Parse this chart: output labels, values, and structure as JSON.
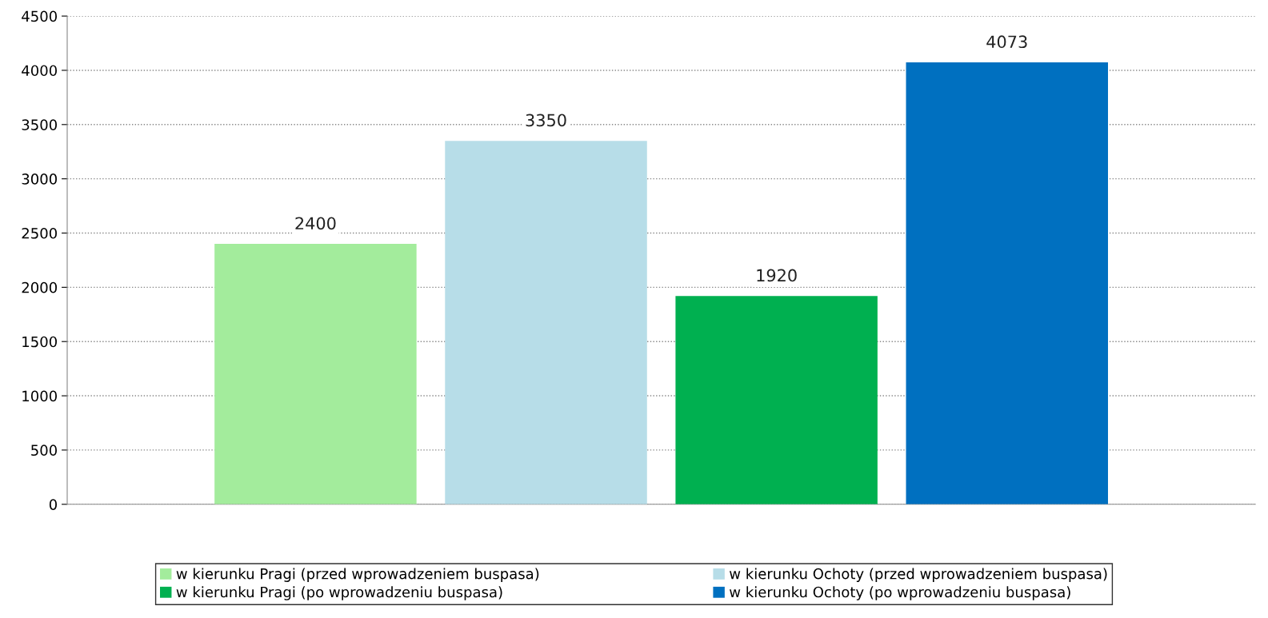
{
  "chart_data": {
    "type": "bar",
    "categories": [
      null
    ],
    "series": [
      {
        "name": "w kierunku Pragi (przed wprowadzeniem buspasa)",
        "color": "#a3ec9c",
        "values": [
          2400
        ]
      },
      {
        "name": "w kierunku Ochoty (przed wprowadzeniem buspasa)",
        "color": "#b7dde8",
        "values": [
          3350
        ]
      },
      {
        "name": "w kierunku Pragi (po wprowadzeniu buspasa)",
        "color": "#00b050",
        "values": [
          1920
        ]
      },
      {
        "name": "w kierunku Ochoty (po wprowadzeniu buspasa)",
        "color": "#0070c0",
        "values": [
          4073
        ]
      }
    ],
    "ylim": [
      0,
      4500
    ],
    "yticks": [
      0,
      500,
      1000,
      1500,
      2000,
      2500,
      3000,
      3500,
      4000,
      4500
    ],
    "grid": "y",
    "legend": "bottom",
    "data_labels": true
  }
}
